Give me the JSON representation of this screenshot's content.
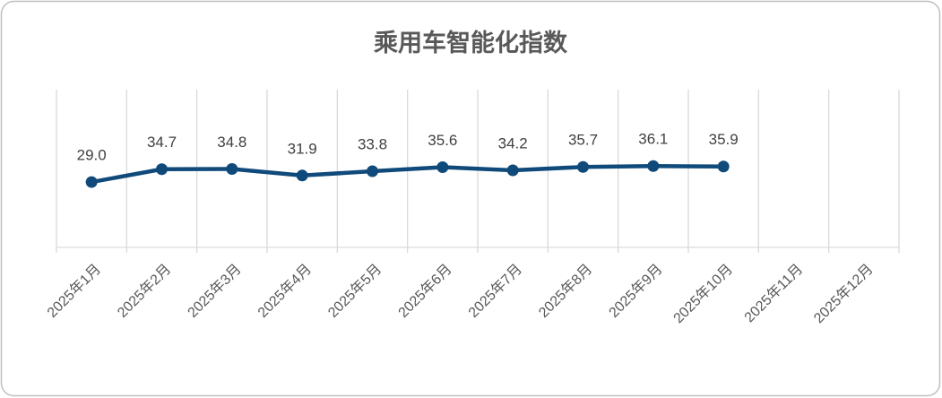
{
  "chart_data": {
    "type": "line",
    "title": "乘用车智能化指数",
    "categories": [
      "2025年1月",
      "2025年2月",
      "2025年3月",
      "2025年4月",
      "2025年5月",
      "2025年6月",
      "2025年7月",
      "2025年8月",
      "2025年9月",
      "2025年10月",
      "2025年11月",
      "2025年12月"
    ],
    "values": [
      29.0,
      34.7,
      34.8,
      31.9,
      33.8,
      35.6,
      34.2,
      35.7,
      36.1,
      35.9,
      null,
      null
    ],
    "value_labels": [
      "29.0",
      "34.7",
      "34.8",
      "31.9",
      "33.8",
      "35.6",
      "34.2",
      "35.7",
      "36.1",
      "35.9",
      null,
      null
    ],
    "color": "#0f4a7a",
    "ylim": [
      0,
      70
    ]
  }
}
